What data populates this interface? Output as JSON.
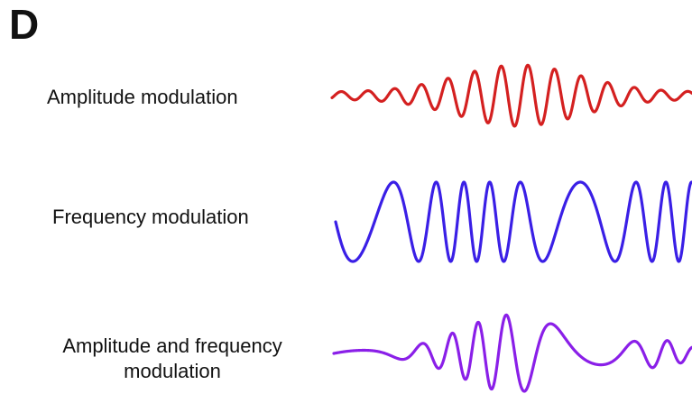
{
  "panel_letter": "D",
  "rows": [
    {
      "label": "Amplitude modulation",
      "color": "#d42020",
      "type": "amplitude"
    },
    {
      "label": "Frequency modulation",
      "color": "#3a1fe6",
      "type": "frequency"
    },
    {
      "label_line1": "Amplitude and frequency",
      "label_line2": "modulation",
      "color": "#8a1fe8",
      "type": "amplitude-frequency"
    }
  ]
}
